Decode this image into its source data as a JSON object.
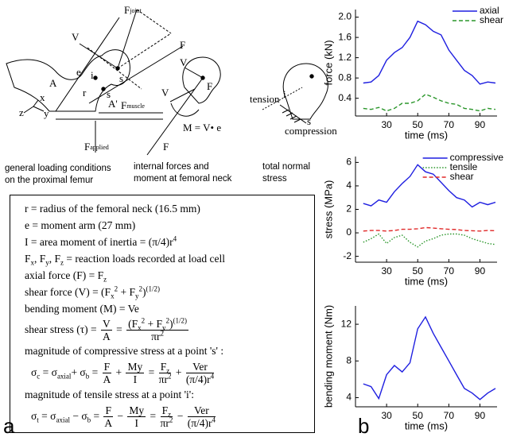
{
  "panel_a": {
    "label": "a",
    "labels": [
      {
        "text": "F",
        "sub": "joint"
      },
      {
        "text": "V"
      },
      {
        "text": "A"
      },
      {
        "text": "e"
      },
      {
        "text": "F"
      },
      {
        "text": "s"
      },
      {
        "text": "i"
      },
      {
        "text": "r"
      },
      {
        "text": "s"
      },
      {
        "text": "A'"
      },
      {
        "text": "z"
      },
      {
        "text": "x"
      },
      {
        "text": "y"
      },
      {
        "text": "F",
        "sub": "muscle"
      },
      {
        "text": "F",
        "sub": "applied"
      },
      {
        "text": "V"
      },
      {
        "text": "V"
      },
      {
        "text": "F"
      },
      {
        "text": "M = V• e"
      },
      {
        "text": "F"
      },
      {
        "text": "tension"
      },
      {
        "text": "i"
      },
      {
        "text": "s"
      },
      {
        "text": "compression"
      }
    ],
    "captions": [
      [
        "general loading conditions",
        "on the proximal femur"
      ],
      [
        "internal forces and",
        "moment at femoral neck"
      ],
      [
        "total normal",
        "stress"
      ]
    ],
    "equations": [
      [
        "r = radius of the femoral neck (16.5 mm)"
      ],
      [
        "e = moment arm (27 mm)"
      ],
      [
        "I = area moment of inertia = (π/4)r",
        "4"
      ],
      [
        "F",
        "x",
        ", F",
        "y",
        ", F",
        "z",
        " = reaction loads recorded at load cell"
      ],
      [
        "axial force (F) = F",
        "z"
      ],
      [
        "shear force (V) = (F",
        "x",
        "2",
        " + F",
        "y",
        "2",
        ")",
        "(1/2)"
      ],
      [
        "bending moment (M) = Ve"
      ],
      [
        "shear stress (τ) = ",
        "V",
        "A",
        " = ",
        "(F",
        "x",
        "2",
        " + F",
        "y",
        "2",
        ")",
        "(1/2)",
        "πr",
        "2"
      ],
      [
        "magnitude of compressive stress at a point 's' :"
      ],
      [
        "σ",
        "c",
        " = σ",
        "axial",
        "+ σ",
        "b",
        " = ",
        "F",
        "A",
        " + ",
        "My",
        "I",
        " = ",
        "F",
        "z",
        "πr",
        "2",
        " + ",
        "Ver",
        "(π/4)r",
        "4"
      ],
      [
        "magnitude of tensile stress at a point 'i':"
      ],
      [
        "σ",
        "t",
        " = σ",
        "axial",
        " − σ",
        "b",
        " = ",
        "F",
        "A",
        " − ",
        "My",
        "I",
        " = ",
        "F",
        "z",
        "πr",
        "2",
        " − ",
        "Ver",
        "(π/4)r",
        "4"
      ]
    ]
  },
  "panel_b": {
    "label": "b"
  },
  "chart_data": [
    {
      "type": "line",
      "ylabel": "force (kN)",
      "xlabel": "time (ms)",
      "x": [
        15,
        20,
        25,
        30,
        35,
        40,
        45,
        50,
        55,
        60,
        65,
        70,
        75,
        80,
        85,
        90,
        95,
        100
      ],
      "xlim": [
        10,
        101
      ],
      "ylim": [
        0.05,
        2.15
      ],
      "xticks": [
        30,
        50,
        70,
        90
      ],
      "yticks": [
        0.4,
        0.8,
        1.2,
        1.6,
        {
          "value": 2,
          "label": "2.0"
        }
      ],
      "legend": "upper right",
      "series": [
        {
          "name": "axial",
          "color": "#1f1fe0",
          "style": "solid",
          "values": [
            0.7,
            0.72,
            0.85,
            1.15,
            1.3,
            1.4,
            1.6,
            1.92,
            1.85,
            1.72,
            1.65,
            1.35,
            1.15,
            0.95,
            0.85,
            0.68,
            0.72,
            0.7
          ]
        },
        {
          "name": "shear",
          "color": "#2a962a",
          "style": "dashed",
          "values": [
            0.2,
            0.18,
            0.22,
            0.15,
            0.2,
            0.3,
            0.3,
            0.35,
            0.48,
            0.42,
            0.35,
            0.3,
            0.28,
            0.2,
            0.18,
            0.15,
            0.2,
            0.18
          ]
        }
      ]
    },
    {
      "type": "line",
      "ylabel": "stress (MPa)",
      "xlabel": "time (ms)",
      "x": [
        15,
        20,
        25,
        30,
        35,
        40,
        45,
        50,
        55,
        60,
        65,
        70,
        75,
        80,
        85,
        90,
        95,
        100
      ],
      "xlim": [
        10,
        101
      ],
      "ylim": [
        -2.5,
        6.5
      ],
      "xticks": [
        30,
        50,
        70,
        90
      ],
      "yticks": [
        -2,
        0,
        2,
        4,
        6
      ],
      "legend": "upper right",
      "series": [
        {
          "name": "compressive",
          "color": "#1f1fe0",
          "style": "solid",
          "values": [
            2.5,
            2.3,
            2.8,
            2.6,
            3.5,
            4.2,
            4.8,
            5.8,
            5.2,
            5.0,
            4.3,
            3.6,
            3.0,
            2.8,
            2.2,
            2.6,
            2.4,
            2.6
          ]
        },
        {
          "name": "tensile",
          "color": "#2a962a",
          "style": "dotted",
          "values": [
            -0.8,
            -0.5,
            -0.1,
            -0.9,
            -0.4,
            -0.2,
            -0.8,
            -1.2,
            -0.7,
            -0.5,
            -0.2,
            -0.1,
            -0.1,
            -0.2,
            -0.5,
            -0.7,
            -0.9,
            -1.0
          ]
        },
        {
          "name": "shear",
          "color": "#e02828",
          "style": "dashed",
          "values": [
            0.15,
            0.2,
            0.2,
            0.15,
            0.2,
            0.3,
            0.3,
            0.35,
            0.45,
            0.4,
            0.35,
            0.3,
            0.28,
            0.2,
            0.18,
            0.15,
            0.2,
            0.18
          ]
        }
      ]
    },
    {
      "type": "line",
      "ylabel": "bending moment (Nm)",
      "xlabel": "time (ms)",
      "x": [
        15,
        20,
        25,
        30,
        35,
        40,
        45,
        50,
        55,
        60,
        65,
        70,
        75,
        80,
        85,
        90,
        95,
        100
      ],
      "xlim": [
        10,
        101
      ],
      "ylim": [
        3,
        14
      ],
      "xticks": [
        30,
        50,
        70,
        90
      ],
      "yticks": [
        4,
        8,
        12
      ],
      "series": [
        {
          "color": "#1f1fe0",
          "style": "solid",
          "values": [
            5.5,
            5.2,
            3.9,
            6.5,
            7.5,
            6.8,
            7.8,
            11.5,
            12.8,
            11,
            9.5,
            8,
            6.5,
            5,
            4.5,
            3.8,
            4.5,
            5
          ]
        }
      ]
    }
  ]
}
